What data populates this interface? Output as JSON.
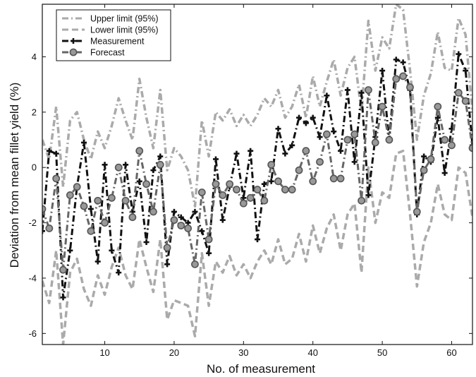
{
  "chart_data": {
    "type": "line",
    "title": "",
    "xlabel": "No. of measurement",
    "ylabel": "Deviation from mean fillet yield (%)",
    "xlim": [
      1,
      63
    ],
    "ylim": [
      -6.4,
      5.9
    ],
    "xticks": [
      10,
      20,
      30,
      40,
      50,
      60
    ],
    "yticks": [
      -6,
      -4,
      -2,
      0,
      2,
      4
    ],
    "grid": false,
    "legend_position": "top-left",
    "x": [
      1,
      2,
      3,
      4,
      5,
      6,
      7,
      8,
      9,
      10,
      11,
      12,
      13,
      14,
      15,
      16,
      17,
      18,
      19,
      20,
      21,
      22,
      23,
      24,
      25,
      26,
      27,
      28,
      29,
      30,
      31,
      32,
      33,
      34,
      35,
      36,
      37,
      38,
      39,
      40,
      41,
      42,
      43,
      44,
      45,
      46,
      47,
      48,
      49,
      50,
      51,
      52,
      53,
      54,
      55,
      56,
      57,
      58,
      59,
      60,
      61,
      62,
      63
    ],
    "series": [
      {
        "name": "Upper limit (95%)",
        "color": "#aaaaaa",
        "dash": "dashdot",
        "values": [
          1.0,
          0.3,
          2.2,
          -0.7,
          1.7,
          2.0,
          1.0,
          0.3,
          1.3,
          0.7,
          1.5,
          2.5,
          1.7,
          1.0,
          3.2,
          1.8,
          0.7,
          2.8,
          -0.1,
          0.7,
          0.4,
          -0.1,
          -1.4,
          1.7,
          0.4,
          2.0,
          1.7,
          2.1,
          1.5,
          1.9,
          1.5,
          1.9,
          2.5,
          2.2,
          2.8,
          1.8,
          2.2,
          3.0,
          1.8,
          3.3,
          2.2,
          3.1,
          3.9,
          2.6,
          3.6,
          4.0,
          2.0,
          5.3,
          3.5,
          4.7,
          4.3,
          5.9,
          5.7,
          3.5,
          1.0,
          2.6,
          3.4,
          4.9,
          3.6,
          3.5,
          5.4,
          4.8,
          2.0
        ]
      },
      {
        "name": "Lower limit (95%)",
        "color": "#aaaaaa",
        "dash": "dash",
        "values": [
          -4.1,
          -4.9,
          -3.0,
          -6.4,
          -3.8,
          -3.3,
          -4.4,
          -5.0,
          -3.9,
          -4.6,
          -3.6,
          -2.9,
          -3.9,
          -4.4,
          -2.6,
          -3.6,
          -4.5,
          -2.6,
          -5.5,
          -4.8,
          -4.9,
          -5.0,
          -6.1,
          -3.1,
          -5.0,
          -3.4,
          -3.8,
          -3.2,
          -3.9,
          -3.5,
          -4.0,
          -3.4,
          -3.0,
          -3.5,
          -2.6,
          -3.5,
          -3.3,
          -2.4,
          -3.4,
          -2.1,
          -3.1,
          -2.2,
          -1.7,
          -3.0,
          -1.7,
          -1.3,
          -3.8,
          0.0,
          -2.0,
          -0.9,
          -1.1,
          0.5,
          0.6,
          -1.7,
          -4.3,
          -2.7,
          -2.0,
          -0.6,
          -1.7,
          -1.9,
          0.0,
          -0.2,
          -1.8
        ]
      },
      {
        "name": "Measurement",
        "color": "#111111",
        "dash": "dashdot",
        "marker": "plus",
        "values": [
          -2.3,
          0.6,
          0.5,
          -4.7,
          -3.0,
          -0.7,
          0.9,
          -1.5,
          -3.4,
          0.1,
          -3.0,
          -3.8,
          0.1,
          -1.6,
          -0.5,
          -2.7,
          -0.1,
          0.4,
          -3.5,
          -1.6,
          -1.8,
          -2.0,
          -1.6,
          -2.3,
          -3.1,
          0.3,
          -1.9,
          -0.7,
          0.5,
          -1.1,
          0.6,
          -2.6,
          -0.6,
          -0.5,
          1.4,
          0.5,
          0.8,
          1.8,
          1.6,
          1.8,
          1.1,
          2.6,
          1.3,
          0.6,
          2.8,
          0.2,
          2.7,
          -1.0,
          1.1,
          3.5,
          1.0,
          3.9,
          3.8,
          2.8,
          -1.7,
          0.4,
          0.2,
          1.8,
          -0.2,
          1.4,
          4.1,
          3.5,
          0.8
        ]
      },
      {
        "name": "Forecast",
        "color": "#666666",
        "dash": "dashdot",
        "marker": "circle",
        "values": [
          -1.5,
          -2.2,
          -0.4,
          -3.7,
          -1.0,
          -0.7,
          -1.4,
          -2.3,
          -1.2,
          -2.0,
          -1.1,
          0.0,
          -1.2,
          -1.8,
          0.6,
          -0.6,
          -1.6,
          0.1,
          -2.9,
          -1.9,
          -2.1,
          -2.2,
          -3.5,
          -0.9,
          -2.6,
          -0.6,
          -1.0,
          -0.6,
          -0.8,
          -1.3,
          -1.1,
          -0.8,
          -1.2,
          0.1,
          -0.5,
          -0.8,
          -0.8,
          -0.1,
          0.6,
          -0.5,
          0.2,
          1.2,
          -0.4,
          -0.4,
          1.0,
          1.2,
          -1.2,
          2.8,
          0.9,
          2.2,
          1.0,
          3.2,
          3.3,
          2.9,
          -1.6,
          -0.1,
          0.3,
          2.2,
          1.0,
          0.8,
          2.7,
          2.4,
          0.7
        ]
      }
    ]
  }
}
